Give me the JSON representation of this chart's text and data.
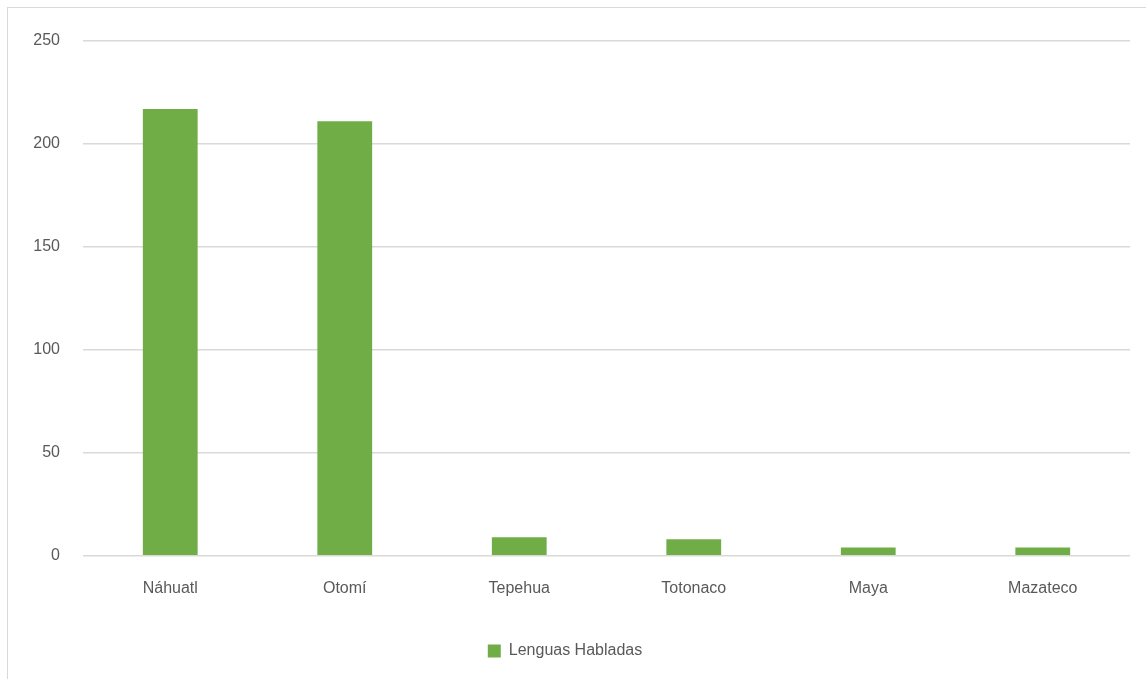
{
  "chart_data": {
    "type": "bar",
    "categories": [
      "Náhuatl",
      "Otomí",
      "Tepehua",
      "Totonaco",
      "Maya",
      "Mazateco"
    ],
    "series": [
      {
        "name": "Lenguas Habladas",
        "color": "#70ad47",
        "values": [
          217,
          211,
          9,
          8,
          4,
          4
        ]
      }
    ],
    "ylim": [
      0,
      250
    ],
    "yticks": [
      0,
      50,
      100,
      150,
      200,
      250
    ],
    "grid": "y",
    "legend": "bottom"
  }
}
